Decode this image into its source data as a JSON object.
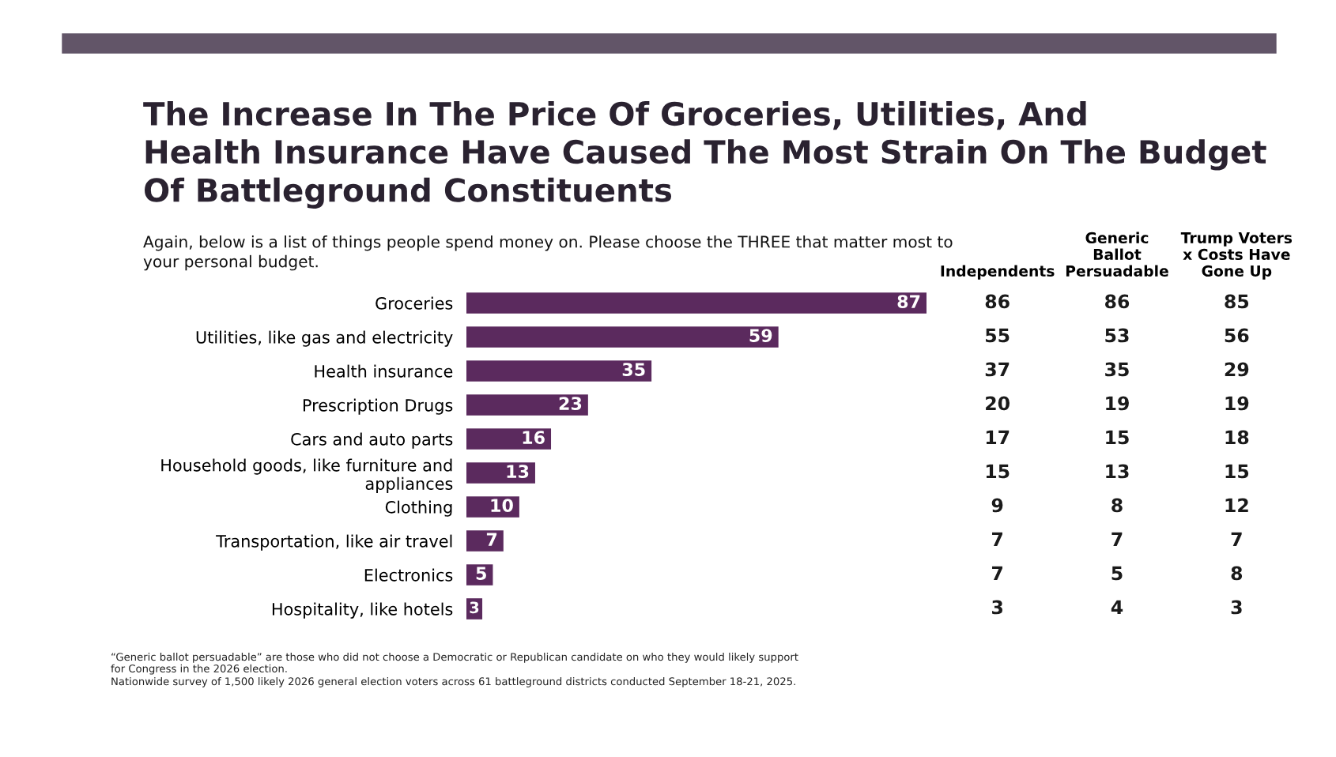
{
  "chart_data": [
    {
      "type": "bar",
      "orientation": "horizontal",
      "title": "The Increase In The Price Of Groceries, Utilities, And Health Insurance Have Caused The Most Strain On The Budget Of Battleground Constituents",
      "subtitle": "Again, below is a list of things people spend money on. Please choose the THREE that matter most to your personal budget.",
      "categories": [
        "Groceries",
        "Utilities, like gas and electricity",
        "Health insurance",
        "Prescription Drugs",
        "Cars and auto parts",
        "Household goods, like furniture and appliances",
        "Clothing",
        "Transportation, like air travel",
        "Electronics",
        "Hospitality, like hotels"
      ],
      "series": [
        {
          "color": "#5b2a5e",
          "values": [
            87,
            59,
            35,
            23,
            16,
            13,
            10,
            7,
            5,
            3
          ]
        }
      ],
      "data_labels": true,
      "annotations": [
        "“Generic ballot persuadable” are those who did not choose a Democratic or Republican candidate on who they would likely support for Congress in the 2026 election.",
        "Nationwide survey of 1,500 likely 2026 general election voters across 61 battleground districts conducted September 18-21, 2025."
      ]
    },
    {
      "type": "heatmap",
      "categories": [
        "Independents",
        "Generic Ballot Persuadable",
        "Trump Voters x Costs Have Gone Up"
      ],
      "y_categories": [
        null,
        null,
        null,
        null,
        null,
        null,
        null,
        null,
        null,
        null
      ],
      "cells": [
        [
          86,
          86,
          85
        ],
        [
          55,
          53,
          56
        ],
        [
          37,
          35,
          29
        ],
        [
          20,
          19,
          19
        ],
        [
          17,
          15,
          18
        ],
        [
          15,
          13,
          15
        ],
        [
          9,
          8,
          12
        ],
        [
          7,
          7,
          7
        ],
        [
          7,
          5,
          8
        ],
        [
          3,
          4,
          3
        ]
      ],
      "data_labels": true,
      "tick_labels": "x"
    }
  ]
}
